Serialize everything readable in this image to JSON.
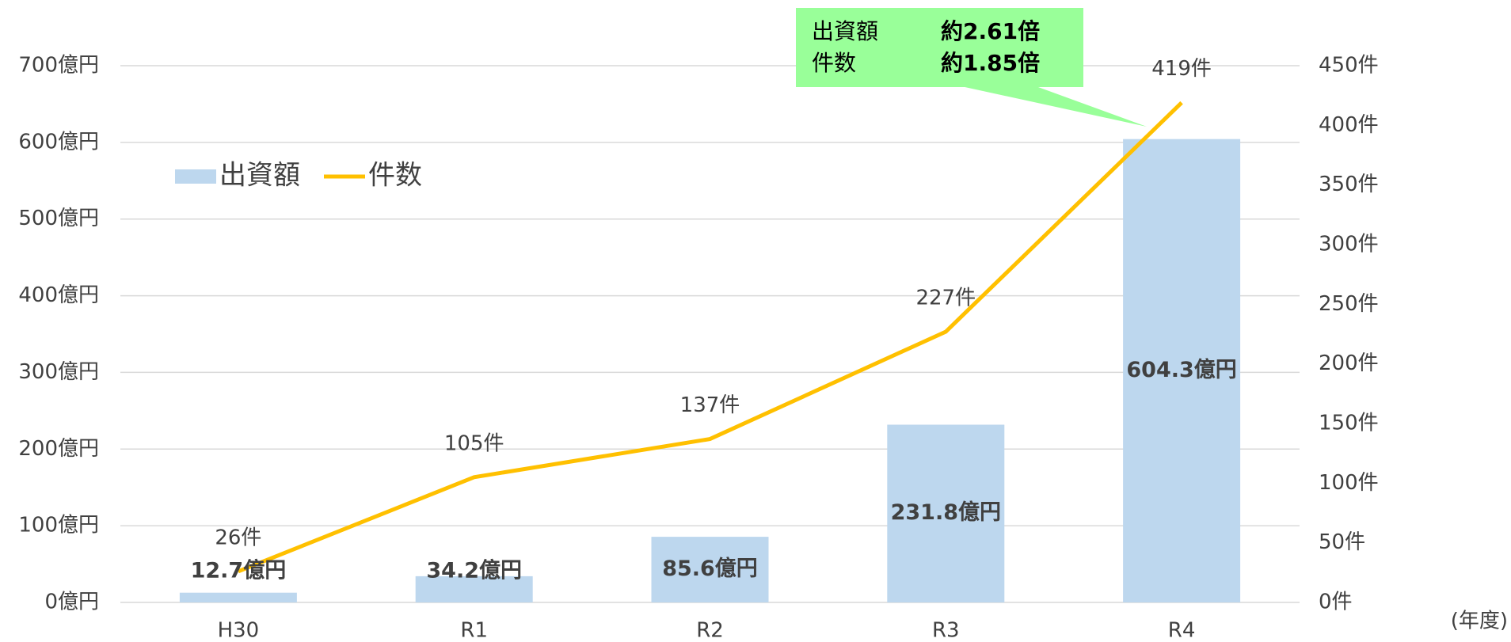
{
  "chart_data": {
    "type": "bar",
    "categories": [
      "H30",
      "R1",
      "R2",
      "R3",
      "R4"
    ],
    "series": [
      {
        "name": "出資額",
        "type": "bar",
        "color": "#bdd7ee",
        "values": [
          12.7,
          34.2,
          85.6,
          231.8,
          604.3
        ],
        "value_labels": [
          "12.7億円",
          "34.2億円",
          "85.6億円",
          "231.8億円",
          "604.3億円"
        ]
      },
      {
        "name": "件数",
        "type": "line",
        "axis": "y2",
        "color": "#ffc000",
        "values": [
          26,
          105,
          137,
          227,
          419
        ],
        "value_labels": [
          "26件",
          "105件",
          "137件",
          "227件",
          "419件"
        ]
      }
    ],
    "ylim": [
      0,
      700
    ],
    "yticks": [
      {
        "value": 0,
        "label": "0億円"
      },
      {
        "value": 100,
        "label": "100億円"
      },
      {
        "value": 200,
        "label": "200億円"
      },
      {
        "value": 300,
        "label": "300億円"
      },
      {
        "value": 400,
        "label": "400億円"
      },
      {
        "value": 500,
        "label": "500億円"
      },
      {
        "value": 600,
        "label": "600億円"
      },
      {
        "value": 700,
        "label": "700億円"
      }
    ],
    "y2lim": [
      0,
      450
    ],
    "y2ticks": [
      {
        "value": 0,
        "label": "0件"
      },
      {
        "value": 50,
        "label": "50件"
      },
      {
        "value": 100,
        "label": "100件"
      },
      {
        "value": 150,
        "label": "150件"
      },
      {
        "value": 200,
        "label": "200件"
      },
      {
        "value": 250,
        "label": "250件"
      },
      {
        "value": 300,
        "label": "300件"
      },
      {
        "value": 350,
        "label": "350件"
      },
      {
        "value": 400,
        "label": "400件"
      },
      {
        "value": 450,
        "label": "450件"
      }
    ],
    "x_unit": "(年度)",
    "grid": true,
    "legend": "upper left",
    "callout": [
      [
        "出資額",
        "約2.61倍"
      ],
      [
        "件数",
        "約1.85倍"
      ]
    ]
  }
}
